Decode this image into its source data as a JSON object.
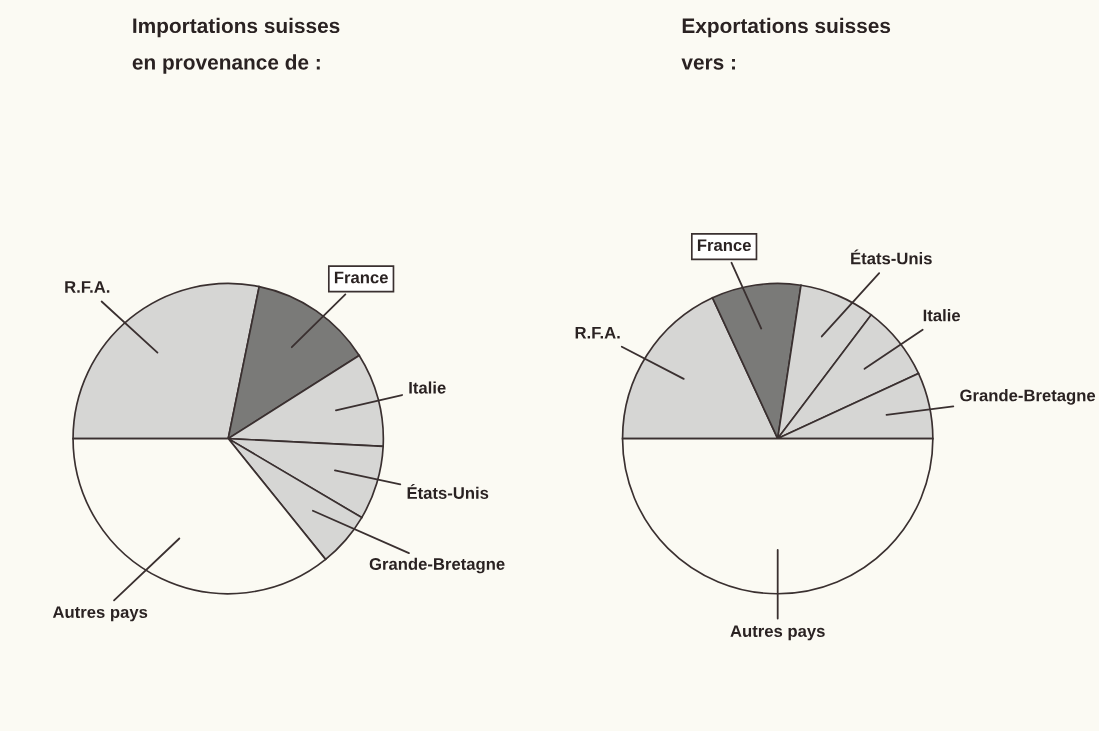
{
  "chart_data": [
    {
      "type": "pie",
      "title": "Importations suisses",
      "subtitle": "en provenance de :",
      "categories": [
        "R.F.A.",
        "France",
        "Italie",
        "États-Unis",
        "Grande-Bretagne",
        "Autres pays"
      ],
      "values": [
        28.2,
        12.8,
        9.8,
        7.7,
        5.7,
        35.8
      ],
      "colors": [
        "#d6d6d4",
        "#7a7a78",
        "#d6d6d4",
        "#d6d6d4",
        "#d6d6d4",
        "#fbfaf3"
      ]
    },
    {
      "type": "pie",
      "title": "Exportations suisses",
      "subtitle": "vers :",
      "categories": [
        "R.F.A.",
        "France",
        "États-Unis",
        "Italie",
        "Grande-Bretagne",
        "Autres pays"
      ],
      "values": [
        18.1,
        9.3,
        7.9,
        7.8,
        6.9,
        50.0
      ],
      "colors": [
        "#d6d6d4",
        "#7a7a78",
        "#d6d6d4",
        "#d6d6d4",
        "#d6d6d4",
        "#fbfaf3"
      ]
    }
  ]
}
